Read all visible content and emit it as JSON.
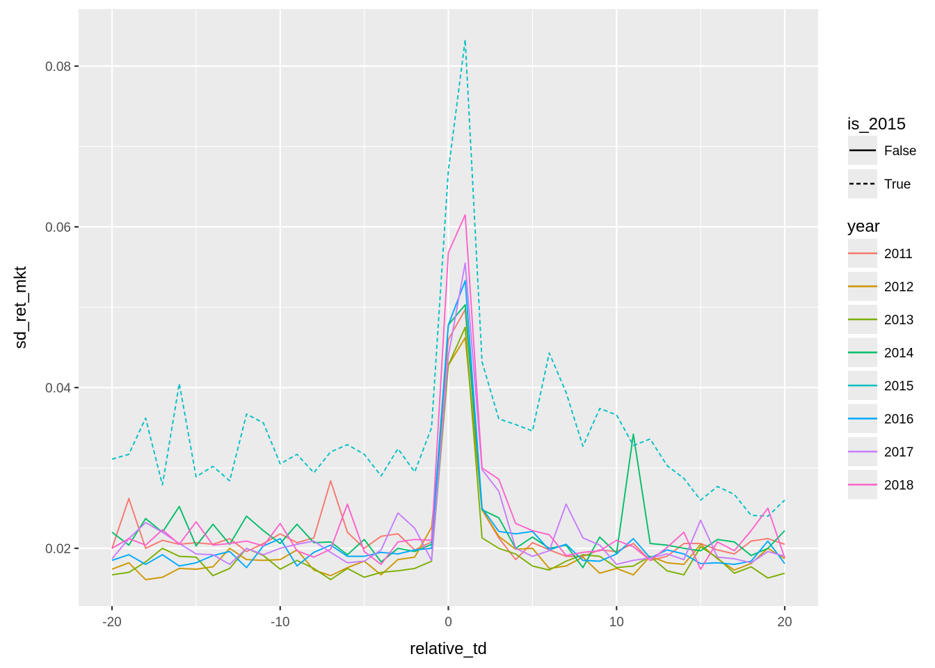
{
  "chart_data": {
    "type": "line",
    "title": "",
    "xlabel": "relative_td",
    "ylabel": "sd_ret_mkt",
    "xlim": [
      -22,
      22
    ],
    "ylim": [
      0.0131,
      0.0873
    ],
    "x_ticks": [
      -20,
      -10,
      0,
      10,
      20
    ],
    "x_tick_labels": [
      "-20",
      "-10",
      "0",
      "10",
      "20"
    ],
    "y_ticks": [
      0.02,
      0.04,
      0.06,
      0.08
    ],
    "y_tick_labels": [
      "0.02",
      "0.04",
      "0.06",
      "0.08"
    ],
    "grid": true,
    "legend_position": "right",
    "x": [
      -20,
      -19,
      -18,
      -17,
      -16,
      -15,
      -14,
      -13,
      -12,
      -11,
      -10,
      -9,
      -8,
      -7,
      -6,
      -5,
      -4,
      -3,
      -2,
      -1,
      0,
      1,
      2,
      3,
      4,
      5,
      6,
      7,
      8,
      9,
      10,
      11,
      12,
      13,
      14,
      15,
      16,
      17,
      18,
      19,
      20
    ],
    "series": [
      {
        "name": "2011",
        "is_2015": "False",
        "color": "#F8766D",
        "values": [
          0.02,
          0.0262,
          0.02,
          0.021,
          0.0205,
          0.0207,
          0.0205,
          0.0212,
          0.0196,
          0.0206,
          0.0218,
          0.0207,
          0.0213,
          0.0284,
          0.022,
          0.02,
          0.0215,
          0.0218,
          0.0198,
          0.0208,
          0.046,
          0.0497,
          0.0248,
          0.0213,
          0.0186,
          0.0207,
          0.0198,
          0.019,
          0.019,
          0.0198,
          0.0196,
          0.0206,
          0.0185,
          0.019,
          0.0206,
          0.0206,
          0.0198,
          0.0193,
          0.0209,
          0.0212,
          0.0205
        ]
      },
      {
        "name": "2012",
        "is_2015": "False",
        "color": "#CD9600",
        "values": [
          0.0174,
          0.0182,
          0.0161,
          0.0164,
          0.0175,
          0.0174,
          0.0177,
          0.02,
          0.0186,
          0.0185,
          0.0186,
          0.0198,
          0.0173,
          0.0166,
          0.0176,
          0.0184,
          0.0167,
          0.0186,
          0.0189,
          0.0226,
          0.0428,
          0.0462,
          0.0248,
          0.0215,
          0.0199,
          0.02,
          0.0175,
          0.0178,
          0.0189,
          0.0169,
          0.0175,
          0.0167,
          0.019,
          0.0182,
          0.018,
          0.0205,
          0.0187,
          0.0173,
          0.0181,
          0.02,
          0.0187
        ]
      },
      {
        "name": "2013",
        "is_2015": "False",
        "color": "#7CAE00",
        "values": [
          0.0167,
          0.017,
          0.0183,
          0.02,
          0.019,
          0.0189,
          0.0166,
          0.0175,
          0.02,
          0.0191,
          0.0174,
          0.0185,
          0.0175,
          0.0161,
          0.0175,
          0.0164,
          0.017,
          0.0172,
          0.0175,
          0.0184,
          0.0428,
          0.0475,
          0.0213,
          0.02,
          0.0193,
          0.0178,
          0.0173,
          0.0184,
          0.0192,
          0.019,
          0.0176,
          0.0178,
          0.019,
          0.0172,
          0.0167,
          0.0202,
          0.0188,
          0.0169,
          0.0177,
          0.0163,
          0.0169
        ]
      },
      {
        "name": "2014",
        "is_2015": "False",
        "color": "#00BE67",
        "values": [
          0.022,
          0.0204,
          0.0237,
          0.022,
          0.0252,
          0.0203,
          0.023,
          0.0205,
          0.024,
          0.0222,
          0.0206,
          0.023,
          0.0207,
          0.0208,
          0.0192,
          0.0211,
          0.0183,
          0.02,
          0.0196,
          0.0205,
          0.0478,
          0.0503,
          0.0248,
          0.0238,
          0.02,
          0.0214,
          0.02,
          0.0204,
          0.0176,
          0.0214,
          0.0194,
          0.0342,
          0.0206,
          0.0204,
          0.02,
          0.0197,
          0.0211,
          0.0208,
          0.0191,
          0.02,
          0.0222
        ]
      },
      {
        "name": "2015",
        "is_2015": "True",
        "color": "#00BFC4",
        "values": [
          0.0311,
          0.0317,
          0.0362,
          0.0279,
          0.0405,
          0.0289,
          0.0302,
          0.0284,
          0.0367,
          0.0356,
          0.0305,
          0.0317,
          0.0294,
          0.032,
          0.0329,
          0.0317,
          0.029,
          0.0324,
          0.0295,
          0.035,
          0.067,
          0.0833,
          0.0432,
          0.0361,
          0.0354,
          0.0346,
          0.0443,
          0.0394,
          0.0327,
          0.0374,
          0.0366,
          0.0328,
          0.0336,
          0.0303,
          0.0287,
          0.026,
          0.0277,
          0.0267,
          0.0241,
          0.024,
          0.026
        ]
      },
      {
        "name": "2016",
        "is_2015": "False",
        "color": "#00A9FF",
        "values": [
          0.0185,
          0.0192,
          0.018,
          0.0192,
          0.0178,
          0.0182,
          0.0191,
          0.0196,
          0.0176,
          0.0203,
          0.0212,
          0.0178,
          0.0195,
          0.0204,
          0.019,
          0.019,
          0.0195,
          0.0193,
          0.0198,
          0.02,
          0.0478,
          0.0533,
          0.025,
          0.0221,
          0.0218,
          0.0221,
          0.0198,
          0.0205,
          0.0185,
          0.0184,
          0.0193,
          0.0212,
          0.0188,
          0.0198,
          0.0193,
          0.0181,
          0.0182,
          0.018,
          0.0184,
          0.0209,
          0.0181
        ]
      },
      {
        "name": "2017",
        "is_2015": "False",
        "color": "#C77CFF",
        "values": [
          0.0187,
          0.0212,
          0.0232,
          0.022,
          0.0206,
          0.0193,
          0.0192,
          0.018,
          0.02,
          0.0192,
          0.02,
          0.0205,
          0.0209,
          0.0195,
          0.0182,
          0.0184,
          0.0198,
          0.0244,
          0.0225,
          0.0185,
          0.044,
          0.0555,
          0.0298,
          0.0271,
          0.02,
          0.019,
          0.0197,
          0.0255,
          0.0213,
          0.0204,
          0.018,
          0.0185,
          0.0188,
          0.0193,
          0.0186,
          0.0235,
          0.0189,
          0.0187,
          0.0182,
          0.0196,
          0.019
        ]
      },
      {
        "name": "2018",
        "is_2015": "False",
        "color": "#FF61CC",
        "values": [
          0.02,
          0.0212,
          0.0204,
          0.0223,
          0.0205,
          0.0233,
          0.0204,
          0.0206,
          0.0209,
          0.0203,
          0.0231,
          0.0197,
          0.0189,
          0.0199,
          0.0255,
          0.0196,
          0.018,
          0.0208,
          0.0211,
          0.021,
          0.0568,
          0.0615,
          0.03,
          0.0286,
          0.0231,
          0.0222,
          0.0217,
          0.0191,
          0.0195,
          0.0197,
          0.021,
          0.0202,
          0.0185,
          0.0201,
          0.022,
          0.0174,
          0.0208,
          0.0197,
          0.0222,
          0.025,
          0.0188
        ]
      }
    ]
  },
  "axes": {
    "x_title": "relative_td",
    "y_title": "sd_ret_mkt"
  },
  "legend": {
    "linetype_title": "is_2015",
    "linetype_items": [
      {
        "label": "False",
        "dash": "solid"
      },
      {
        "label": "True",
        "dash": "dashed"
      }
    ],
    "color_title": "year",
    "color_items": [
      {
        "label": "2011",
        "color": "#F8766D"
      },
      {
        "label": "2012",
        "color": "#CD9600"
      },
      {
        "label": "2013",
        "color": "#7CAE00"
      },
      {
        "label": "2014",
        "color": "#00BE67"
      },
      {
        "label": "2015",
        "color": "#00BFC4"
      },
      {
        "label": "2016",
        "color": "#00A9FF"
      },
      {
        "label": "2017",
        "color": "#C77CFF"
      },
      {
        "label": "2018",
        "color": "#FF61CC"
      }
    ]
  },
  "theme": {
    "panel_bg": "#EBEBEB",
    "grid_major": "#FFFFFF",
    "tick_color": "#333333"
  }
}
